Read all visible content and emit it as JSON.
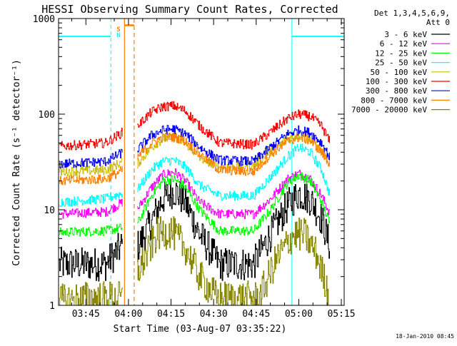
{
  "chart_data": {
    "type": "line",
    "title": "HESSI Observing Summary Count Rates, Corrected",
    "xlabel": "Start Time (03-Aug-07 03:35:22)",
    "ylabel": "Corrected Count Rate (s⁻¹ detector⁻¹)",
    "yscale": "log",
    "ylim": [
      1,
      1000
    ],
    "xlim_minutes": [
      215.37,
      316.0
    ],
    "x_ticks": [
      {
        "label": "03:45",
        "minutes": 225
      },
      {
        "label": "04:00",
        "minutes": 240
      },
      {
        "label": "04:15",
        "minutes": 255
      },
      {
        "label": "04:30",
        "minutes": 270
      },
      {
        "label": "04:45",
        "minutes": 285
      },
      {
        "label": "05:00",
        "minutes": 300
      },
      {
        "label": "05:15",
        "minutes": 315
      }
    ],
    "y_ticks": [
      {
        "label": "1",
        "value": 1
      },
      {
        "label": "10",
        "value": 10
      },
      {
        "label": "100",
        "value": 100
      },
      {
        "label": "1000",
        "value": 1000
      }
    ],
    "legend": {
      "header": [
        "Det 1,3,4,5,6,9,",
        "Att 0"
      ],
      "placement": "right, outside plot"
    },
    "series": [
      {
        "name": "3 - 6 keV",
        "color": "#000000",
        "key": [
          [
            215.4,
            2.7
          ],
          [
            232,
            2.7
          ],
          [
            238,
            4.3
          ],
          [
            238.6,
            null
          ],
          [
            243,
            4.0
          ],
          [
            248,
            7.5
          ],
          [
            252,
            13
          ],
          [
            256,
            16
          ],
          [
            260,
            12
          ],
          [
            265,
            5.5
          ],
          [
            272,
            2.7
          ],
          [
            284,
            2.7
          ],
          [
            290,
            5.5
          ],
          [
            296,
            11
          ],
          [
            300,
            15
          ],
          [
            304,
            13
          ],
          [
            308,
            8
          ],
          [
            311,
            4
          ]
        ]
      },
      {
        "name": "6 - 12 keV",
        "color": "#ff00ff",
        "key": [
          [
            215.4,
            9
          ],
          [
            232,
            9.5
          ],
          [
            238,
            12
          ],
          [
            238.6,
            null
          ],
          [
            243,
            10
          ],
          [
            248,
            17
          ],
          [
            252,
            23
          ],
          [
            256,
            25
          ],
          [
            260,
            20
          ],
          [
            265,
            12
          ],
          [
            272,
            9
          ],
          [
            284,
            9
          ],
          [
            290,
            13
          ],
          [
            296,
            21
          ],
          [
            300,
            24
          ],
          [
            304,
            21
          ],
          [
            308,
            14
          ],
          [
            311,
            9
          ]
        ]
      },
      {
        "name": "12 - 25 keV",
        "color": "#00ff00",
        "key": [
          [
            215.4,
            5.8
          ],
          [
            232,
            6
          ],
          [
            238,
            6.5
          ],
          [
            238.6,
            null
          ],
          [
            243,
            7
          ],
          [
            248,
            14
          ],
          [
            252,
            20
          ],
          [
            256,
            21
          ],
          [
            260,
            17
          ],
          [
            265,
            10
          ],
          [
            272,
            6
          ],
          [
            284,
            6
          ],
          [
            290,
            10
          ],
          [
            296,
            19
          ],
          [
            300,
            23
          ],
          [
            304,
            20
          ],
          [
            308,
            12
          ],
          [
            311,
            7
          ]
        ]
      },
      {
        "name": "25 - 50 keV",
        "color": "#00ffff",
        "key": [
          [
            215.4,
            12
          ],
          [
            232,
            13
          ],
          [
            238,
            15
          ],
          [
            238.6,
            null
          ],
          [
            243,
            16
          ],
          [
            248,
            26
          ],
          [
            252,
            32
          ],
          [
            256,
            33
          ],
          [
            260,
            28
          ],
          [
            265,
            18
          ],
          [
            272,
            14
          ],
          [
            284,
            14
          ],
          [
            290,
            22
          ],
          [
            296,
            36
          ],
          [
            300,
            45
          ],
          [
            304,
            40
          ],
          [
            308,
            26
          ],
          [
            311,
            14
          ]
        ]
      },
      {
        "name": "50 - 100 keV",
        "color": "#ccbb00",
        "key": [
          [
            215.4,
            25
          ],
          [
            232,
            26
          ],
          [
            238,
            32
          ],
          [
            238.6,
            null
          ],
          [
            243,
            30
          ],
          [
            248,
            45
          ],
          [
            252,
            55
          ],
          [
            256,
            57
          ],
          [
            260,
            50
          ],
          [
            265,
            35
          ],
          [
            272,
            28
          ],
          [
            284,
            29
          ],
          [
            290,
            40
          ],
          [
            296,
            55
          ],
          [
            300,
            60
          ],
          [
            304,
            55
          ],
          [
            308,
            40
          ],
          [
            311,
            30
          ]
        ]
      },
      {
        "name": "100 - 300 keV",
        "color": "#ff0000",
        "key": [
          [
            215.4,
            46
          ],
          [
            232,
            50
          ],
          [
            238,
            65
          ],
          [
            238.6,
            null
          ],
          [
            243,
            75
          ],
          [
            248,
            105
          ],
          [
            252,
            120
          ],
          [
            256,
            122
          ],
          [
            260,
            108
          ],
          [
            265,
            75
          ],
          [
            272,
            50
          ],
          [
            284,
            48
          ],
          [
            290,
            65
          ],
          [
            296,
            90
          ],
          [
            300,
            100
          ],
          [
            304,
            95
          ],
          [
            308,
            75
          ],
          [
            311,
            50
          ]
        ]
      },
      {
        "name": "300 - 800 keV",
        "color": "#0000ff",
        "key": [
          [
            215.4,
            30
          ],
          [
            232,
            32
          ],
          [
            238,
            40
          ],
          [
            238.6,
            null
          ],
          [
            243,
            42
          ],
          [
            248,
            60
          ],
          [
            252,
            68
          ],
          [
            256,
            70
          ],
          [
            260,
            62
          ],
          [
            265,
            45
          ],
          [
            272,
            33
          ],
          [
            284,
            32
          ],
          [
            290,
            45
          ],
          [
            296,
            62
          ],
          [
            300,
            68
          ],
          [
            304,
            64
          ],
          [
            308,
            50
          ],
          [
            311,
            35
          ]
        ]
      },
      {
        "name": "800 - 7000 keV",
        "color": "#ff7f00",
        "key": [
          [
            215.4,
            20
          ],
          [
            232,
            21
          ],
          [
            238,
            26
          ],
          [
            238.6,
            null
          ],
          [
            243,
            35
          ],
          [
            248,
            50
          ],
          [
            252,
            57
          ],
          [
            256,
            58
          ],
          [
            260,
            52
          ],
          [
            265,
            38
          ],
          [
            272,
            26
          ],
          [
            284,
            25
          ],
          [
            290,
            38
          ],
          [
            296,
            52
          ],
          [
            300,
            57
          ],
          [
            304,
            53
          ],
          [
            308,
            40
          ],
          [
            311,
            30
          ]
        ]
      },
      {
        "name": "7000 - 20000 keV",
        "color": "#888800",
        "key": [
          [
            215.4,
            1.1
          ],
          [
            226,
            1.2
          ],
          [
            238,
            1.2
          ],
          [
            238.6,
            null
          ],
          [
            243,
            2.2
          ],
          [
            246,
            3.2
          ],
          [
            250,
            5.5
          ],
          [
            255,
            6
          ],
          [
            260,
            4
          ],
          [
            265,
            2
          ],
          [
            271,
            1.2
          ],
          [
            286,
            1.2
          ],
          [
            292,
            3
          ],
          [
            298,
            5.5
          ],
          [
            302,
            5.5
          ],
          [
            306,
            3.5
          ],
          [
            310,
            1.5
          ],
          [
            311,
            1
          ]
        ]
      }
    ],
    "markers": {
      "saa_label": "S",
      "night_label": "N",
      "saa_color": "#ff7f00",
      "night_color": "#00ffff",
      "night_level": 650,
      "saa_level": 850,
      "night_intervals": [
        [
          215.37,
          233.8
        ],
        [
          297.6,
          316.0
        ]
      ],
      "saa_intervals": [
        [
          238.6,
          242.0
        ]
      ]
    }
  },
  "footer": {
    "timestamp": "18-Jan-2010 08:45"
  }
}
